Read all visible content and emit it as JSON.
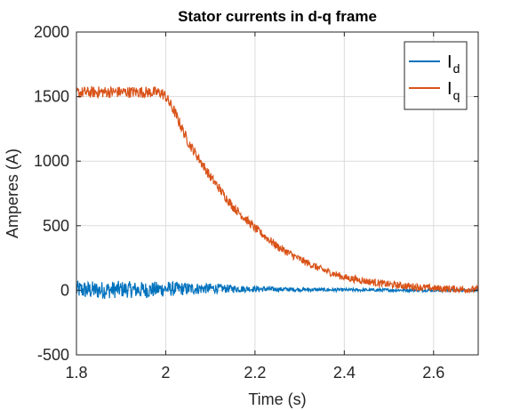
{
  "chart_data": {
    "type": "line",
    "title": "Stator currents in d-q frame",
    "xlabel": "Time (s)",
    "ylabel": "Amperes (A)",
    "xlim": [
      1.8,
      2.7
    ],
    "ylim": [
      -500,
      2000
    ],
    "x_ticks": [
      1.8,
      2.0,
      2.2,
      2.4,
      2.6
    ],
    "x_tick_labels": [
      "1.8",
      "2",
      "2.2",
      "2.4",
      "2.6"
    ],
    "y_ticks": [
      -500,
      0,
      500,
      1000,
      1500,
      2000
    ],
    "y_tick_labels": [
      "-500",
      "0",
      "500",
      "1000",
      "1500",
      "2000"
    ],
    "grid": true,
    "legend_position": "top-right",
    "series": [
      {
        "name": "I",
        "subscript": "d",
        "color": "#0072BD",
        "x": [
          1.8,
          1.85,
          1.9,
          1.95,
          2.0,
          2.05,
          2.1,
          2.15,
          2.2,
          2.25,
          2.3,
          2.35,
          2.4,
          2.45,
          2.5,
          2.55,
          2.6,
          2.65,
          2.7
        ],
        "y": [
          5,
          0,
          8,
          2,
          10,
          12,
          15,
          12,
          10,
          8,
          6,
          4,
          3,
          2,
          2,
          1,
          1,
          0,
          0
        ],
        "noise_amplitude": [
          70,
          70,
          65,
          65,
          60,
          50,
          40,
          30,
          22,
          18,
          15,
          14,
          13,
          12,
          12,
          12,
          12,
          12,
          12
        ]
      },
      {
        "name": "I",
        "subscript": "q",
        "color": "#D95319",
        "x": [
          1.8,
          1.85,
          1.9,
          1.95,
          1.99,
          2.0,
          2.02,
          2.05,
          2.1,
          2.15,
          2.2,
          2.25,
          2.3,
          2.35,
          2.4,
          2.45,
          2.5,
          2.55,
          2.6,
          2.65,
          2.7
        ],
        "y": [
          1530,
          1535,
          1535,
          1535,
          1530,
          1500,
          1380,
          1150,
          880,
          650,
          480,
          340,
          240,
          160,
          100,
          70,
          45,
          30,
          15,
          10,
          5
        ],
        "noise_amplitude": [
          45,
          45,
          45,
          45,
          45,
          45,
          45,
          40,
          38,
          36,
          34,
          32,
          30,
          28,
          28,
          28,
          28,
          28,
          28,
          28,
          28
        ]
      }
    ]
  }
}
